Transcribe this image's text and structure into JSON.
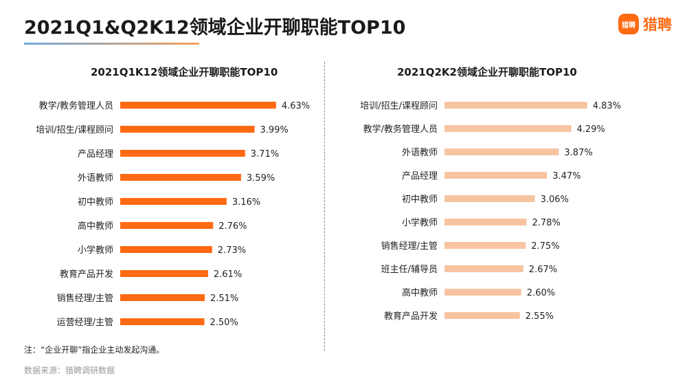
{
  "header": {
    "title": "2021Q1&Q2K12领域企业开聊职能TOP10",
    "logo_badge": "猎聘",
    "logo_text": "猎聘"
  },
  "footer": {
    "note": "注：“企业开聊”指企业主动发起沟通。",
    "source": "数据来源：猎聘调研数据"
  },
  "colors": {
    "q1_bar": "#ff6a13",
    "q2_bar": "#f7c4a2",
    "brand": "#ff6a13"
  },
  "chart_data": [
    {
      "type": "bar",
      "orientation": "horizontal",
      "title": "2021Q1K12领域企业开聊职能TOP10",
      "categories": [
        "教学/教务管理人员",
        "培训/招生/课程顾问",
        "产品经理",
        "外语教师",
        "初中教师",
        "高中教师",
        "小学教师",
        "教育产品开发",
        "销售经理/主管",
        "运营经理/主管"
      ],
      "values": [
        4.63,
        3.99,
        3.71,
        3.59,
        3.16,
        2.76,
        2.73,
        2.61,
        2.51,
        2.5
      ],
      "labels": [
        "4.63%",
        "3.99%",
        "3.71%",
        "3.59%",
        "3.16%",
        "2.76%",
        "2.73%",
        "2.61%",
        "2.51%",
        "2.50%"
      ],
      "unit": "%"
    },
    {
      "type": "bar",
      "orientation": "horizontal",
      "title": "2021Q2K2领域企业开聊职能TOP10",
      "categories": [
        "培训/招生/课程顾问",
        "教学/教务管理人员",
        "外语教师",
        "产品经理",
        "初中教师",
        "小学教师",
        "销售经理/主管",
        "班主任/辅导员",
        "高中教师",
        "教育产品开发"
      ],
      "values": [
        4.83,
        4.29,
        3.87,
        3.47,
        3.06,
        2.78,
        2.75,
        2.67,
        2.6,
        2.55
      ],
      "labels": [
        "4.83%",
        "4.29%",
        "3.87%",
        "3.47%",
        "3.06%",
        "2.78%",
        "2.75%",
        "2.67%",
        "2.60%",
        "2.55%"
      ],
      "unit": "%"
    }
  ]
}
